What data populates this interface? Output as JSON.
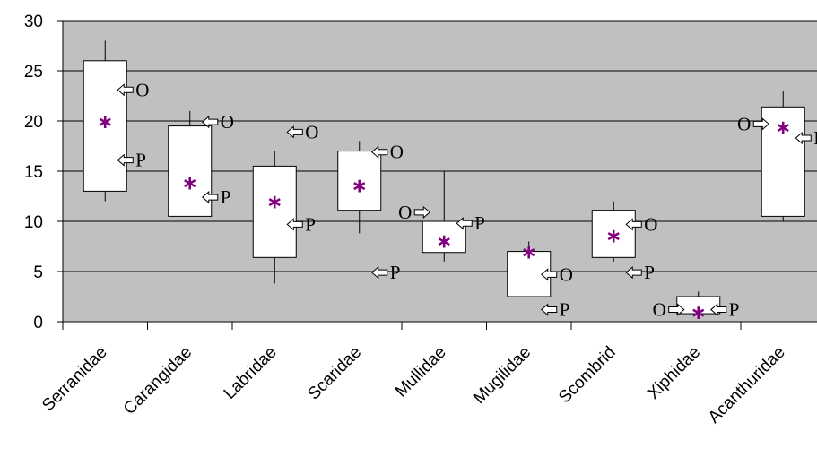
{
  "chart_data": {
    "type": "box",
    "categories": [
      "Serranidae",
      "Carangidae",
      "Labridae",
      "Scaridae",
      "Mullidae",
      "Mugilidae",
      "Scombrid",
      "Xiphidae",
      "Acanthuridae"
    ],
    "ylim": [
      0,
      30
    ],
    "yticks": [
      "0",
      "5",
      "10",
      "15",
      "20",
      "25",
      "30"
    ],
    "grid": true,
    "boxes": [
      {
        "min": 12,
        "q1": 13,
        "q3": 26,
        "max": 28,
        "mean": 20
      },
      {
        "min": 10.5,
        "q1": 10.5,
        "q3": 19.5,
        "max": 21,
        "mean": 13.9
      },
      {
        "min": 3.8,
        "q1": 6.4,
        "q3": 15.5,
        "max": 17,
        "mean": 12
      },
      {
        "min": 8.8,
        "q1": 11.1,
        "q3": 17,
        "max": 18,
        "mean": 13.6
      },
      {
        "min": 6,
        "q1": 6.9,
        "q3": 10,
        "max": 15,
        "mean": 8.1
      },
      {
        "min": 2.5,
        "q1": 2.5,
        "q3": 7,
        "max": 8,
        "mean": 7
      },
      {
        "min": 6,
        "q1": 6.4,
        "q3": 11.1,
        "max": 12,
        "mean": 8.6
      },
      {
        "min": 0.5,
        "q1": 0.8,
        "q3": 2.5,
        "max": 3,
        "mean": 1
      },
      {
        "min": 10,
        "q1": 10.5,
        "q3": 21.4,
        "max": 23,
        "mean": 19.4
      }
    ],
    "markers": [
      {
        "cat": 0,
        "label": "O",
        "value": 23.1,
        "dir": "left"
      },
      {
        "cat": 0,
        "label": "P",
        "value": 16.1,
        "dir": "left"
      },
      {
        "cat": 1,
        "label": "O",
        "value": 19.9,
        "dir": "left"
      },
      {
        "cat": 1,
        "label": "P",
        "value": 12.4,
        "dir": "left"
      },
      {
        "cat": 2,
        "label": "O",
        "value": 18.9,
        "dir": "left"
      },
      {
        "cat": 2,
        "label": "P",
        "value": 9.7,
        "dir": "left"
      },
      {
        "cat": 3,
        "label": "O",
        "value": 16.9,
        "dir": "left"
      },
      {
        "cat": 3,
        "label": "P",
        "value": 4.9,
        "dir": "left"
      },
      {
        "cat": 4,
        "label": "O",
        "value": 10.9,
        "dir": "right"
      },
      {
        "cat": 4,
        "label": "P",
        "value": 9.8,
        "dir": "left"
      },
      {
        "cat": 5,
        "label": "O",
        "value": 4.7,
        "dir": "left"
      },
      {
        "cat": 5,
        "label": "P",
        "value": 1.2,
        "dir": "left"
      },
      {
        "cat": 6,
        "label": "O",
        "value": 9.7,
        "dir": "left"
      },
      {
        "cat": 6,
        "label": "P",
        "value": 4.9,
        "dir": "left"
      },
      {
        "cat": 7,
        "label": "O",
        "value": 1.2,
        "dir": "right"
      },
      {
        "cat": 7,
        "label": "P",
        "value": 1.2,
        "dir": "left"
      },
      {
        "cat": 8,
        "label": "O",
        "value": 19.7,
        "dir": "right"
      },
      {
        "cat": 8,
        "label": "P",
        "value": 18.3,
        "dir": "left"
      }
    ],
    "colors": {
      "plot_bg": "#c0c0c0",
      "gridline": "#000000",
      "box_fill": "#ffffff",
      "mean_marker": "#800080"
    }
  }
}
